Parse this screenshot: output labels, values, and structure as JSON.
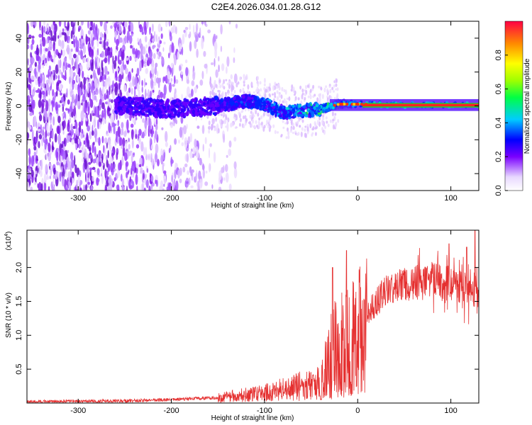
{
  "title": "C2E4.2026.034.01.28.G12",
  "chart_data": [
    {
      "type": "heatmap",
      "title": "C2E4.2026.034.01.28.G12",
      "xlabel": "Height of straight line (km)",
      "ylabel": "Frequency (Hz)",
      "xlim": [
        -355,
        130
      ],
      "ylim": [
        -50,
        50
      ],
      "xticks": [
        -300,
        -200,
        -100,
        0,
        100
      ],
      "yticks": [
        -40,
        -20,
        0,
        20,
        40
      ],
      "colorbar": {
        "label": "Normalized spectral amplitude",
        "ticks": [
          0.0,
          0.2,
          0.4,
          0.6,
          0.8
        ],
        "range": [
          0,
          1
        ]
      },
      "ridge": [
        {
          "x": -250,
          "f": 0
        },
        {
          "x": -200,
          "f": -2
        },
        {
          "x": -150,
          "f": 0
        },
        {
          "x": -120,
          "f": 3
        },
        {
          "x": -100,
          "f": 1
        },
        {
          "x": -80,
          "f": -4
        },
        {
          "x": -60,
          "f": -3
        },
        {
          "x": -40,
          "f": -2
        },
        {
          "x": -20,
          "f": 1
        },
        {
          "x": 0,
          "f": 1
        },
        {
          "x": 50,
          "f": 0.5
        },
        {
          "x": 130,
          "f": 0.5
        }
      ]
    },
    {
      "type": "line",
      "xlabel": "Height of straight line (km)",
      "ylabel": "SNR (10 * v/v)",
      "yscale_label": "(x10",
      "yscale_exp": "4",
      "yscale_close": ")",
      "xlim": [
        -355,
        130
      ],
      "ylim": [
        0,
        2.55
      ],
      "xticks": [
        -300,
        -200,
        -100,
        0,
        100
      ],
      "yticks": [
        0.5,
        1.0,
        1.5,
        2.0
      ],
      "color": "#e53030",
      "envelope": [
        {
          "x": -355,
          "y": 0.02
        },
        {
          "x": -250,
          "y": 0.03
        },
        {
          "x": -200,
          "y": 0.05
        },
        {
          "x": -150,
          "y": 0.08
        },
        {
          "x": -120,
          "y": 0.12
        },
        {
          "x": -100,
          "y": 0.15
        },
        {
          "x": -80,
          "y": 0.2
        },
        {
          "x": -60,
          "y": 0.25
        },
        {
          "x": -40,
          "y": 0.3
        },
        {
          "x": -30,
          "y": 0.7
        },
        {
          "x": -20,
          "y": 0.9
        },
        {
          "x": -10,
          "y": 0.9
        },
        {
          "x": 0,
          "y": 1.0
        },
        {
          "x": 10,
          "y": 1.3
        },
        {
          "x": 20,
          "y": 1.5
        },
        {
          "x": 30,
          "y": 1.65
        },
        {
          "x": 50,
          "y": 1.75
        },
        {
          "x": 70,
          "y": 1.8
        },
        {
          "x": 90,
          "y": 1.8
        },
        {
          "x": 110,
          "y": 1.7
        },
        {
          "x": 130,
          "y": 1.5
        }
      ],
      "spikes": [
        {
          "x": -27,
          "y": 2.0
        },
        {
          "x": -12,
          "y": 2.25
        },
        {
          "x": 98,
          "y": 2.35
        },
        {
          "x": 126,
          "y": 2.55
        },
        {
          "x": 117,
          "y": 2.3
        }
      ]
    }
  ]
}
